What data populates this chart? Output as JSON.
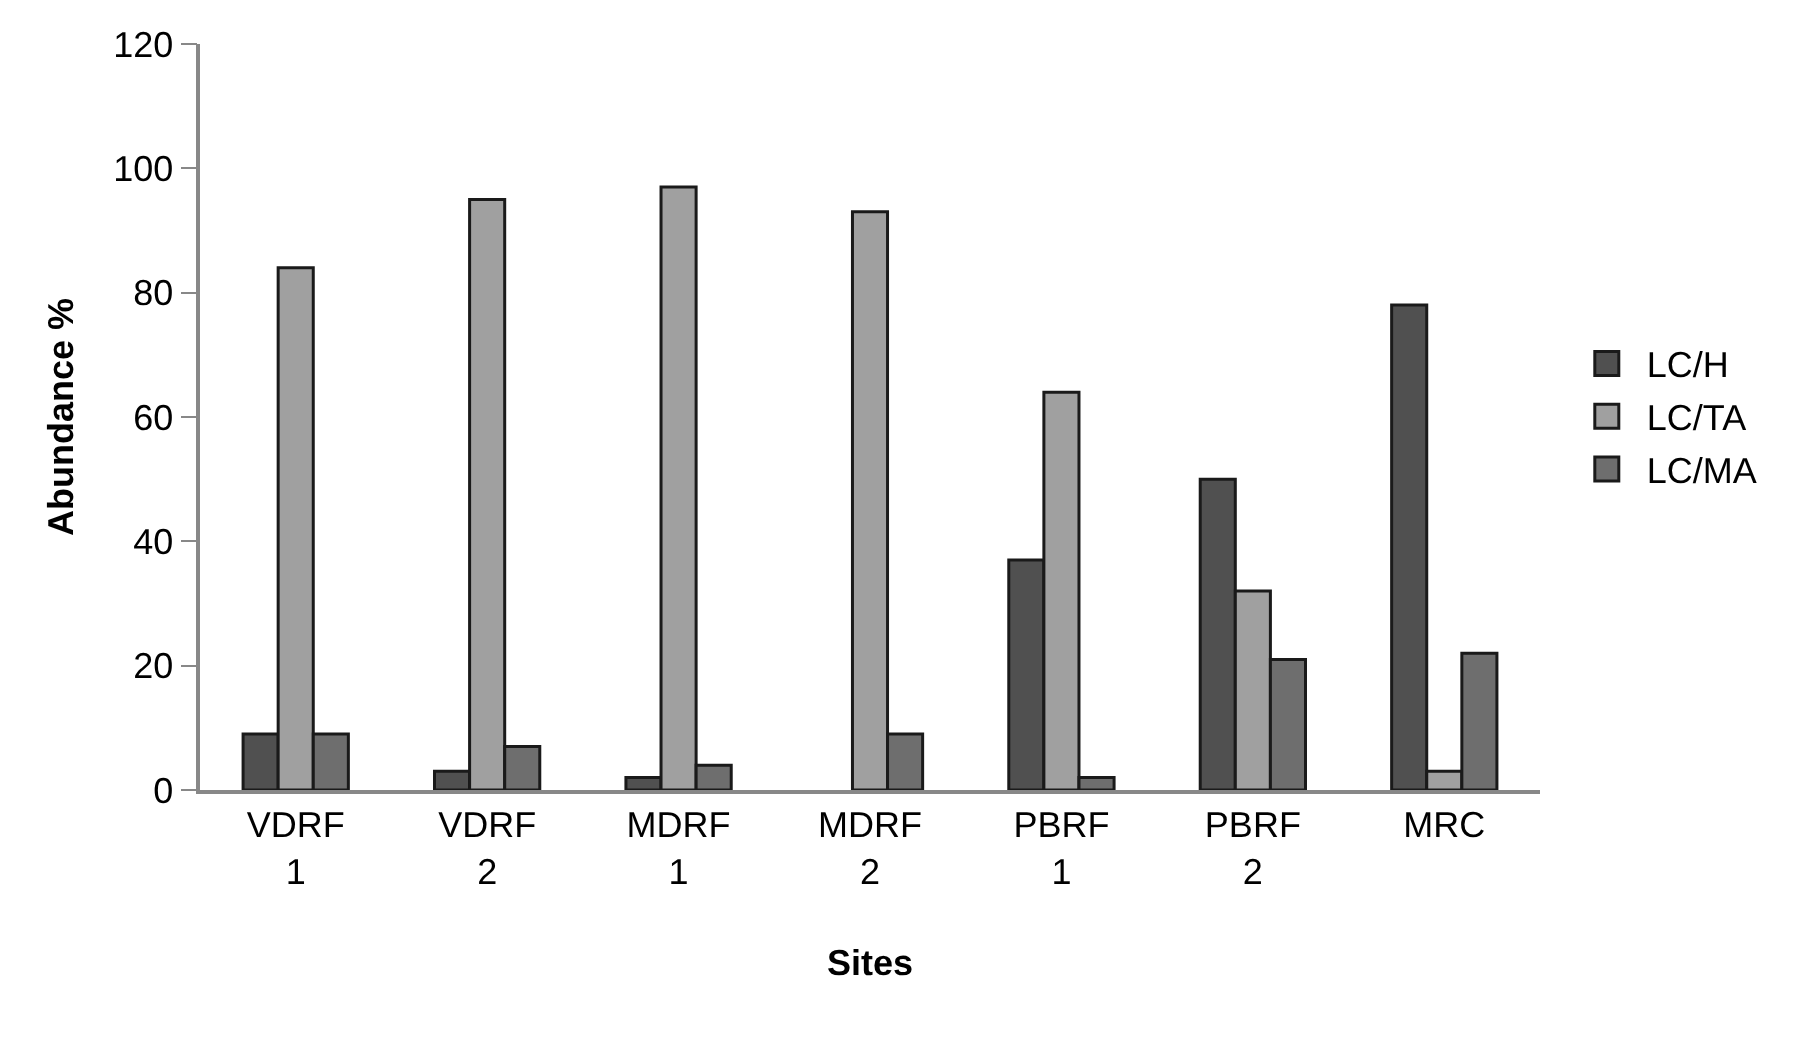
{
  "chart_data": {
    "type": "bar",
    "xlabel": "Sites",
    "ylabel": "Abundance %",
    "categories": [
      "VDRF\n1",
      "VDRF\n2",
      "MDRF\n1",
      "MDRF\n2",
      "PBRF\n1",
      "PBRF\n2",
      "MRC"
    ],
    "series": [
      {
        "name": "LC/H",
        "color": "#505050",
        "values": [
          9,
          3,
          2,
          0,
          37,
          50,
          78
        ]
      },
      {
        "name": "LC/TA",
        "color": "#a0a0a0",
        "values": [
          84,
          95,
          97,
          93,
          64,
          32,
          3
        ]
      },
      {
        "name": "LC/MA",
        "color": "#6e6e6e",
        "values": [
          9,
          7,
          4,
          9,
          2,
          21,
          22
        ]
      }
    ],
    "ylim": [
      0,
      120
    ],
    "yticks": [
      0,
      20,
      40,
      60,
      80,
      100,
      120
    ],
    "grid": false,
    "legend": "right"
  }
}
